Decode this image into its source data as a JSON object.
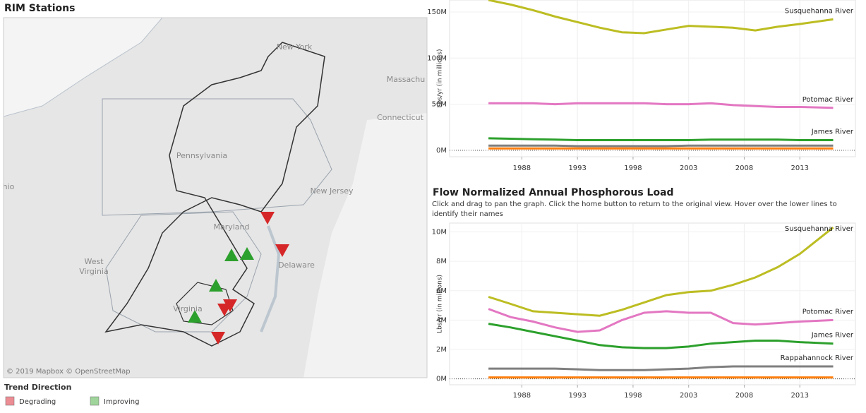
{
  "map": {
    "title": "RIM Stations",
    "labels": [
      "New York",
      "Massachu",
      "Connecticut",
      "Pennsylvania",
      "New Jersey",
      "Maryland",
      "Delaware",
      "West",
      "Virginia",
      "Virginia",
      "hio"
    ],
    "attribution": "© 2019 Mapbox © OpenStreetMap"
  },
  "legend": {
    "title": "Trend Direction",
    "items": [
      {
        "label": "Degrading",
        "color": "#ec8c93"
      },
      {
        "label": "Improving",
        "color": "#9fd49a"
      }
    ]
  },
  "chart_data": [
    {
      "type": "line",
      "y_label": "Lbs/yr (in millions)",
      "x": [
        1985,
        1987,
        1989,
        1991,
        1993,
        1995,
        1997,
        1999,
        2001,
        2003,
        2005,
        2007,
        2009,
        2011,
        2013,
        2016
      ],
      "xlim": [
        1981.5,
        2018
      ],
      "xticks": [
        1988,
        1993,
        1998,
        2003,
        2008,
        2013
      ],
      "ylim": [
        -7,
        163
      ],
      "yticks": [
        {
          "value": 0,
          "label": "0M"
        },
        {
          "value": 50,
          "label": "50M"
        },
        {
          "value": 100,
          "label": "100M"
        },
        {
          "value": 150,
          "label": "150M"
        }
      ],
      "grid": true,
      "series": [
        {
          "name": "Susquehanna River",
          "color": "#bcbd22",
          "values": [
            163,
            158,
            152,
            145,
            139,
            133,
            128,
            127,
            131,
            135,
            134,
            133,
            130,
            134,
            137,
            142
          ]
        },
        {
          "name": "Potomac River",
          "color": "#e377c2",
          "values": [
            51,
            51,
            51,
            50,
            51,
            51,
            51,
            51,
            50,
            50,
            51,
            49,
            48,
            47,
            47,
            46
          ]
        },
        {
          "name": "James River",
          "color": "#2ca02c",
          "values": [
            13,
            12.5,
            12,
            11.5,
            11,
            11,
            11,
            11,
            11,
            11,
            11.5,
            11.5,
            11.5,
            11.5,
            11,
            11
          ]
        },
        {
          "name": null,
          "color": "#7f7f7f",
          "values": [
            5,
            5,
            5,
            5,
            4.5,
            4.5,
            4.5,
            4.5,
            4.5,
            5,
            5,
            5,
            5,
            5,
            5,
            5
          ]
        },
        {
          "name": null,
          "color": "#ff7f0e",
          "values": [
            2,
            2,
            2,
            2,
            2,
            2,
            2,
            2,
            2,
            2,
            2,
            2,
            2,
            2,
            2,
            2
          ]
        }
      ]
    },
    {
      "type": "line",
      "title": "Flow Normalized Annual Phosphorous Load",
      "subtitle": "Click and drag to pan the graph. Click the home button to return to the original view. Hover over the lower lines to identify their names",
      "y_label": "Lbs/yr (in millions)",
      "x": [
        1985,
        1987,
        1989,
        1991,
        1993,
        1995,
        1997,
        1999,
        2001,
        2003,
        2005,
        2007,
        2009,
        2011,
        2013,
        2016
      ],
      "xlim": [
        1981.5,
        2018
      ],
      "xticks": [
        1988,
        1993,
        1998,
        2003,
        2008,
        2013
      ],
      "ylim": [
        -0.4,
        10.6
      ],
      "yticks": [
        {
          "value": 0,
          "label": "0M"
        },
        {
          "value": 2,
          "label": "2M"
        },
        {
          "value": 4,
          "label": "4M"
        },
        {
          "value": 6,
          "label": "6M"
        },
        {
          "value": 8,
          "label": "8M"
        },
        {
          "value": 10,
          "label": "10M"
        }
      ],
      "grid": true,
      "series": [
        {
          "name": "Susquehanna River",
          "color": "#bcbd22",
          "values": [
            5.58,
            5.1,
            4.6,
            4.5,
            4.4,
            4.3,
            4.7,
            5.2,
            5.7,
            5.9,
            6.0,
            6.4,
            6.9,
            7.6,
            8.5,
            10.3
          ]
        },
        {
          "name": "Potomac River",
          "color": "#e377c2",
          "values": [
            4.76,
            4.2,
            3.9,
            3.5,
            3.2,
            3.3,
            4.0,
            4.5,
            4.6,
            4.5,
            4.5,
            3.8,
            3.7,
            3.8,
            3.9,
            4.0
          ]
        },
        {
          "name": "James River",
          "color": "#2ca02c",
          "values": [
            3.75,
            3.5,
            3.2,
            2.9,
            2.6,
            2.3,
            2.15,
            2.1,
            2.1,
            2.2,
            2.4,
            2.5,
            2.6,
            2.6,
            2.5,
            2.4
          ]
        },
        {
          "name": "Rappahannock River",
          "color": "#7f7f7f",
          "values": [
            0.7,
            0.7,
            0.7,
            0.7,
            0.65,
            0.6,
            0.6,
            0.6,
            0.65,
            0.7,
            0.8,
            0.85,
            0.85,
            0.85,
            0.85,
            0.85
          ]
        },
        {
          "name": null,
          "color": "#ff7f0e",
          "values": [
            0.1,
            0.1,
            0.1,
            0.1,
            0.1,
            0.1,
            0.1,
            0.1,
            0.1,
            0.1,
            0.1,
            0.1,
            0.1,
            0.1,
            0.1,
            0.1
          ]
        }
      ]
    }
  ]
}
